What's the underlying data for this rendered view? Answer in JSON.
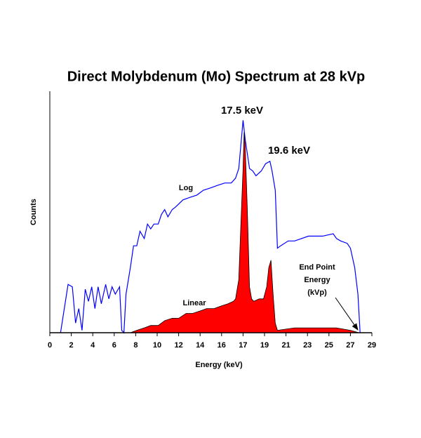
{
  "chart_data": {
    "type": "line",
    "title": "Direct Molybdenum (Mo) Spectrum at 28 kVp",
    "x_label": "Energy (keV)",
    "y_label": "Counts",
    "xlim": [
      0,
      30
    ],
    "ylim": [
      0,
      100
    ],
    "xticks": [
      0,
      2,
      4,
      6,
      8,
      10,
      12,
      14,
      16,
      {
        "value": 18,
        "label": "17"
      },
      {
        "value": 20,
        "label": "19"
      },
      {
        "value": 22,
        "label": "21"
      },
      {
        "value": 24,
        "label": "23"
      },
      {
        "value": 26,
        "label": "25"
      },
      {
        "value": 28,
        "label": "27"
      },
      {
        "value": 30,
        "label": "29"
      }
    ],
    "annotations": [
      "17.5 keV",
      "19.6 keV",
      "Log",
      "Linear",
      "End Point",
      "Energy",
      "(kVp)"
    ],
    "series": [
      {
        "name": "Log",
        "color": "#0000ff",
        "style": "line",
        "x": [
          1.0,
          1.7,
          2.1,
          2.4,
          2.7,
          3.0,
          3.3,
          3.6,
          3.9,
          4.2,
          4.5,
          4.8,
          5.2,
          5.5,
          5.8,
          6.1,
          6.5,
          6.7,
          6.9,
          7.1,
          7.5,
          7.8,
          8.1,
          8.4,
          8.8,
          9.1,
          9.4,
          9.7,
          10.1,
          10.4,
          10.7,
          11.0,
          11.4,
          11.7,
          12.4,
          13.0,
          13.7,
          14.3,
          15.0,
          15.6,
          16.3,
          16.9,
          17.3,
          17.6,
          17.9,
          18.0,
          18.2,
          18.6,
          18.9,
          19.2,
          19.7,
          20.1,
          20.5,
          20.7,
          21.0,
          21.2,
          21.5,
          22.2,
          22.8,
          24.1,
          25.4,
          26.4,
          26.7,
          27.1,
          27.7,
          28.0,
          28.4,
          28.7,
          28.9
        ],
        "values": [
          0,
          20,
          19,
          4,
          10,
          1,
          18,
          13,
          19,
          10,
          19,
          12,
          20,
          14,
          19,
          16,
          19,
          1,
          0,
          16,
          27,
          36,
          36,
          42,
          39,
          45,
          43,
          45,
          45,
          49,
          51,
          48,
          51,
          52,
          55,
          56,
          57,
          59,
          60,
          61,
          62,
          62,
          64,
          68,
          83,
          88,
          80,
          68,
          67,
          65,
          67,
          70,
          71,
          67,
          59,
          35,
          36,
          38,
          38,
          40,
          40,
          41,
          39,
          38,
          37,
          35,
          27,
          16,
          0
        ]
      },
      {
        "name": "Linear",
        "color": "#ff0000",
        "style": "area",
        "x": [
          7.5,
          8.1,
          8.8,
          9.4,
          10.1,
          10.7,
          11.4,
          12.0,
          12.7,
          13.3,
          14.0,
          14.6,
          15.3,
          15.9,
          16.6,
          17.1,
          17.3,
          17.6,
          17.8,
          18.0,
          18.1,
          18.2,
          18.4,
          18.6,
          18.8,
          19.0,
          19.5,
          19.9,
          20.2,
          20.4,
          20.6,
          20.8,
          21.0,
          21.2,
          22.8,
          24.1,
          25.4,
          26.7,
          28.0,
          28.8
        ],
        "values": [
          0,
          1,
          2,
          3,
          3,
          5,
          6,
          6,
          8,
          8,
          9,
          10,
          10,
          11,
          12,
          13,
          14,
          22,
          45,
          68,
          83,
          77,
          51,
          19,
          14,
          13,
          14,
          14,
          19,
          27,
          30,
          16,
          4,
          1,
          2,
          2,
          2,
          2,
          1,
          0
        ]
      }
    ]
  }
}
